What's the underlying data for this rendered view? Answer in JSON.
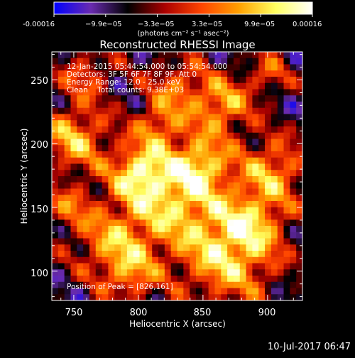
{
  "colorbar": {
    "tick_labels": [
      "-0.00016",
      "−9.9e−05",
      "−3.3e−05",
      "3.3e−05",
      "9.9e−05",
      "0.00016"
    ],
    "units_label": "(photons cm⁻² s⁻¹ asec⁻²)",
    "range": [
      -0.00016,
      0.00016
    ],
    "colormap": [
      "#0000ff",
      "#6a2bb0",
      "#000000",
      "#aa0000",
      "#ff4500",
      "#ffa000",
      "#ffff60",
      "#ffffff"
    ]
  },
  "chart_data": {
    "type": "heatmap",
    "title": "Reconstructed RHESSI Image",
    "xlabel": "Heliocentric X (arcsec)",
    "ylabel": "Heliocentric Y (arcsec)",
    "xlim": [
      733,
      927
    ],
    "ylim": [
      77,
      272
    ],
    "x_ticks": [
      750,
      800,
      850,
      900
    ],
    "y_ticks": [
      100,
      150,
      200,
      250
    ],
    "info_lines": [
      "12-Jan-2015 05:44:54.000 to 05:54:54.000",
      "Detectors: 3F 5F 6F 7F 8F 9F, Att 0",
      "Energy Range: 12.0 - 25.0 keV",
      "Clean    Total counts: 9.38E+03"
    ],
    "peak_label": "Position of Peak = [826,161]",
    "peak": [
      826,
      161
    ],
    "grid_resolution": 40
  },
  "footer": {
    "timestamp": "10-Jul-2017 06:47"
  }
}
